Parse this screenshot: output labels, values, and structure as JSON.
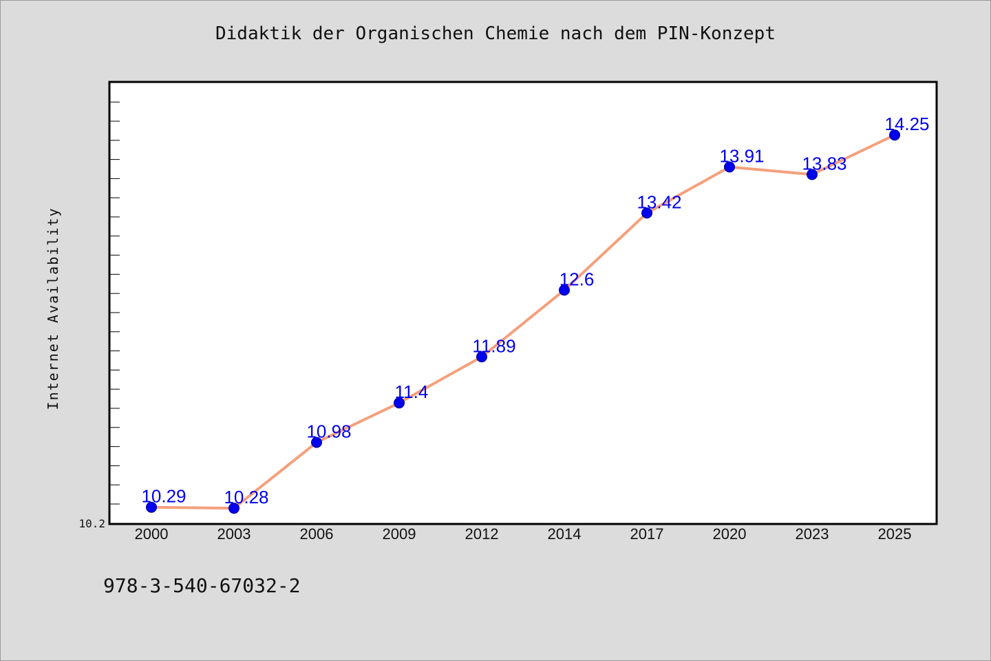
{
  "title": "Didaktik der Organischen Chemie nach dem PIN-Konzept",
  "footer_id": "978-3-540-67032-2",
  "colors": {
    "background": "#dcdcdc",
    "plot_background": "#ffffff",
    "line": "#f4a07c",
    "marker": "#0000ee",
    "data_label": "#0000ee"
  },
  "chart_data": {
    "type": "line",
    "title": "Didaktik der Organischen Chemie nach dem PIN-Konzept",
    "xlabel": "",
    "ylabel": "Internet Availability",
    "categories": [
      "2000",
      "2003",
      "2006",
      "2009",
      "2012",
      "2014",
      "2017",
      "2020",
      "2023",
      "2025"
    ],
    "series": [
      {
        "values": [
          10.29,
          10.28,
          10.98,
          11.4,
          11.89,
          12.6,
          13.42,
          13.91,
          13.83,
          14.25
        ]
      }
    ],
    "data_labels": [
      "10.29",
      "10.28",
      "10.98",
      "11.4",
      "11.89",
      "12.6",
      "13.42",
      "13.91",
      "13.83",
      "14.25"
    ],
    "y_tick_labels": [
      "10.2"
    ],
    "ylim": [
      10.2,
      14.8
    ],
    "grid": false,
    "legend": "none"
  }
}
